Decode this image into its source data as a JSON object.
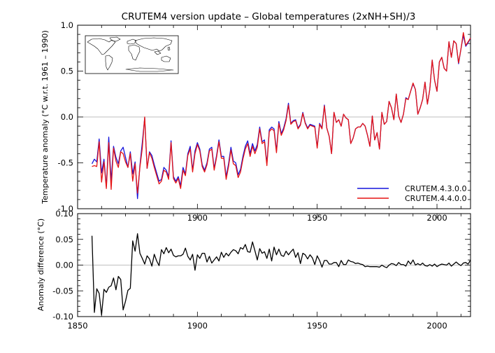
{
  "chart_data": [
    {
      "type": "line",
      "title": "CRUTEM4 version update – Global temperatures (2xNH+SH)/3",
      "xlabel": "",
      "ylabel": "Temperature anomaly (°C w.r.t. 1961 – 1990)",
      "xlim": [
        1850,
        2014
      ],
      "ylim": [
        -1.0,
        1.0
      ],
      "xticks": [
        1900,
        1950,
        2000
      ],
      "yticks": [
        {
          "value": 1.0,
          "label": "1.0"
        },
        {
          "value": 0.5,
          "label": "0.5"
        },
        {
          "value": 0.0,
          "label": "0.0"
        },
        {
          "value": -0.5,
          "label": "-0.5"
        },
        {
          "value": -1.0,
          "label": "-1.0"
        }
      ],
      "zero_line": true,
      "legend": "bottom-right",
      "inset": "world-map",
      "x": [
        1856,
        1857,
        1858,
        1859,
        1860,
        1861,
        1862,
        1863,
        1864,
        1865,
        1866,
        1867,
        1868,
        1869,
        1870,
        1871,
        1872,
        1873,
        1874,
        1875,
        1876,
        1877,
        1878,
        1879,
        1880,
        1881,
        1882,
        1883,
        1884,
        1885,
        1886,
        1887,
        1888,
        1889,
        1890,
        1891,
        1892,
        1893,
        1894,
        1895,
        1896,
        1897,
        1898,
        1899,
        1900,
        1901,
        1902,
        1903,
        1904,
        1905,
        1906,
        1907,
        1908,
        1909,
        1910,
        1911,
        1912,
        1913,
        1914,
        1915,
        1916,
        1917,
        1918,
        1919,
        1920,
        1921,
        1922,
        1923,
        1924,
        1925,
        1926,
        1927,
        1928,
        1929,
        1930,
        1931,
        1932,
        1933,
        1934,
        1935,
        1936,
        1937,
        1938,
        1939,
        1940,
        1941,
        1942,
        1943,
        1944,
        1945,
        1946,
        1947,
        1948,
        1949,
        1950,
        1951,
        1952,
        1953,
        1954,
        1955,
        1956,
        1957,
        1958,
        1959,
        1960,
        1961,
        1962,
        1963,
        1964,
        1965,
        1966,
        1967,
        1968,
        1969,
        1970,
        1971,
        1972,
        1973,
        1974,
        1975,
        1976,
        1977,
        1978,
        1979,
        1980,
        1981,
        1982,
        1983,
        1984,
        1985,
        1986,
        1987,
        1988,
        1989,
        1990,
        1991,
        1992,
        1993,
        1994,
        1995,
        1996,
        1997,
        1998,
        1999,
        2000,
        2001,
        2002,
        2003,
        2004,
        2005,
        2006,
        2007,
        2008,
        2009,
        2010,
        2011,
        2012,
        2013,
        2014
      ],
      "series": [
        {
          "name": "CRUTEM.4.3.0.0",
          "color": "#1414dc",
          "values": [
            -0.51,
            -0.46,
            -0.49,
            -0.24,
            -0.61,
            -0.46,
            -0.76,
            -0.22,
            -0.7,
            -0.32,
            -0.44,
            -0.51,
            -0.37,
            -0.33,
            -0.44,
            -0.55,
            -0.38,
            -0.62,
            -0.49,
            -0.89,
            -0.53,
            -0.28,
            -0.01,
            -0.56,
            -0.38,
            -0.42,
            -0.52,
            -0.61,
            -0.7,
            -0.68,
            -0.55,
            -0.58,
            -0.65,
            -0.26,
            -0.65,
            -0.7,
            -0.65,
            -0.75,
            -0.55,
            -0.62,
            -0.4,
            -0.32,
            -0.58,
            -0.37,
            -0.28,
            -0.35,
            -0.52,
            -0.58,
            -0.5,
            -0.35,
            -0.33,
            -0.56,
            -0.42,
            -0.25,
            -0.43,
            -0.43,
            -0.65,
            -0.51,
            -0.33,
            -0.48,
            -0.5,
            -0.63,
            -0.57,
            -0.43,
            -0.32,
            -0.26,
            -0.4,
            -0.29,
            -0.37,
            -0.3,
            -0.11,
            -0.27,
            -0.25,
            -0.51,
            -0.14,
            -0.11,
            -0.13,
            -0.37,
            -0.05,
            -0.18,
            -0.12,
            -0.02,
            0.15,
            -0.07,
            -0.04,
            -0.03,
            -0.12,
            -0.08,
            0.05,
            -0.06,
            -0.12,
            -0.08,
            -0.09,
            -0.1,
            -0.33,
            -0.07,
            -0.12,
            0.13,
            -0.12,
            -0.21,
            -0.4,
            0.05,
            -0.06,
            -0.03,
            -0.1,
            0.03,
            -0.01,
            -0.03,
            -0.29,
            -0.23,
            -0.13,
            -0.11,
            -0.11,
            -0.07,
            -0.1,
            -0.2,
            -0.32,
            0.01,
            -0.25,
            -0.17,
            -0.35,
            0.05,
            -0.08,
            -0.05,
            0.17,
            0.1,
            -0.03,
            0.25,
            0.01,
            -0.06,
            0.03,
            0.21,
            0.19,
            0.28,
            0.36,
            0.3,
            0.03,
            0.1,
            0.19,
            0.38,
            0.14,
            0.3,
            0.62,
            0.4,
            0.28,
            0.6,
            0.65,
            0.53,
            0.5,
            0.82,
            0.65,
            0.83,
            0.8,
            0.58,
            0.74,
            0.89,
            0.77,
            0.81,
            0.86
          ]
        },
        {
          "name": "CRUTEM.4.4.0.0",
          "color": "#e61414",
          "values": [
            -0.54,
            -0.53,
            -0.54,
            -0.27,
            -0.71,
            -0.49,
            -0.78,
            -0.28,
            -0.79,
            -0.34,
            -0.48,
            -0.55,
            -0.38,
            -0.4,
            -0.49,
            -0.55,
            -0.4,
            -0.7,
            -0.51,
            -0.83,
            -0.55,
            -0.34,
            0.0,
            -0.56,
            -0.39,
            -0.45,
            -0.55,
            -0.64,
            -0.73,
            -0.7,
            -0.58,
            -0.6,
            -0.68,
            -0.28,
            -0.67,
            -0.72,
            -0.67,
            -0.78,
            -0.58,
            -0.64,
            -0.42,
            -0.35,
            -0.6,
            -0.4,
            -0.3,
            -0.37,
            -0.54,
            -0.6,
            -0.52,
            -0.37,
            -0.35,
            -0.58,
            -0.44,
            -0.27,
            -0.45,
            -0.45,
            -0.68,
            -0.54,
            -0.36,
            -0.51,
            -0.53,
            -0.66,
            -0.6,
            -0.46,
            -0.35,
            -0.29,
            -0.43,
            -0.32,
            -0.4,
            -0.33,
            -0.13,
            -0.29,
            -0.27,
            -0.53,
            -0.16,
            -0.13,
            -0.15,
            -0.39,
            -0.07,
            -0.2,
            -0.14,
            -0.04,
            0.13,
            -0.08,
            -0.05,
            -0.04,
            -0.13,
            -0.09,
            0.04,
            -0.07,
            -0.13,
            -0.09,
            -0.1,
            -0.11,
            -0.34,
            -0.08,
            -0.13,
            0.12,
            -0.12,
            -0.21,
            -0.4,
            0.05,
            -0.06,
            -0.03,
            -0.1,
            0.03,
            -0.01,
            -0.03,
            -0.29,
            -0.23,
            -0.13,
            -0.11,
            -0.11,
            -0.07,
            -0.1,
            -0.2,
            -0.32,
            0.01,
            -0.25,
            -0.17,
            -0.35,
            0.05,
            -0.08,
            -0.05,
            0.17,
            0.1,
            -0.03,
            0.25,
            0.01,
            -0.06,
            0.03,
            0.2,
            0.19,
            0.28,
            0.37,
            0.3,
            0.03,
            0.1,
            0.19,
            0.38,
            0.14,
            0.3,
            0.62,
            0.4,
            0.28,
            0.6,
            0.65,
            0.53,
            0.5,
            0.82,
            0.65,
            0.83,
            0.8,
            0.59,
            0.74,
            0.92,
            0.78,
            0.82,
            0.86
          ]
        }
      ]
    },
    {
      "type": "line",
      "title": "",
      "xlabel": "",
      "ylabel": "Anomaly difference (°C)",
      "xlim": [
        1850,
        2014
      ],
      "ylim": [
        -0.1,
        0.1
      ],
      "xticks": [
        1850,
        1900,
        1950,
        2000
      ],
      "yticks": [
        {
          "value": 0.1,
          "label": "0.10"
        },
        {
          "value": 0.05,
          "label": "0.05"
        },
        {
          "value": 0.0,
          "label": "0.00"
        },
        {
          "value": -0.05,
          "label": "-0.05"
        },
        {
          "value": -0.1,
          "label": "-0.10"
        }
      ],
      "zero_line": true,
      "series": [
        {
          "name": "",
          "color": "#000000",
          "values": [
            0.057,
            -0.092,
            -0.046,
            -0.055,
            -0.097,
            -0.047,
            -0.053,
            -0.043,
            -0.04,
            -0.025,
            -0.048,
            -0.022,
            -0.028,
            -0.087,
            -0.07,
            -0.049,
            -0.045,
            0.047,
            0.027,
            0.061,
            0.023,
            0.013,
            0.002,
            0.018,
            0.012,
            -0.002,
            0.021,
            0.008,
            -0.001,
            0.03,
            0.022,
            0.034,
            0.024,
            0.031,
            0.019,
            0.016,
            0.018,
            0.018,
            0.021,
            0.033,
            0.017,
            0.01,
            0.021,
            -0.01,
            0.02,
            0.013,
            0.023,
            0.023,
            0.006,
            0.017,
            0.004,
            0.01,
            0.016,
            0.008,
            0.025,
            0.015,
            0.023,
            0.018,
            0.025,
            0.03,
            0.028,
            0.022,
            0.034,
            0.031,
            0.04,
            0.026,
            0.025,
            0.045,
            0.028,
            0.01,
            0.032,
            0.023,
            0.026,
            0.013,
            0.031,
            0.008,
            0.035,
            0.02,
            0.031,
            0.019,
            0.017,
            0.027,
            0.02,
            0.026,
            0.031,
            0.015,
            0.024,
            0.003,
            0.023,
            0.02,
            0.012,
            0.02,
            0.014,
            0.001,
            0.018,
            0.009,
            -0.004,
            0.009,
            0.009,
            0.002,
            0.002,
            0.005,
            0.005,
            -0.003,
            0.009,
            0.001,
            0.001,
            0.01,
            0.007,
            0.006,
            0.003,
            0.004,
            0.002,
            0.001,
            -0.003,
            -0.002,
            -0.003,
            -0.003,
            -0.003,
            -0.003,
            -0.004,
            0.0,
            -0.003,
            -0.005,
            0.0,
            0.003,
            0.002,
            -0.001,
            0.005,
            0.001,
            0.001,
            -0.002,
            0.008,
            0.002,
            0.01,
            0.0,
            0.003,
            0.0,
            0.004,
            -0.001,
            -0.002,
            0.001,
            -0.002,
            0.002,
            -0.003,
            0.0,
            0.002,
            0.001,
            0.0,
            0.004,
            -0.002,
            0.002,
            0.006,
            0.002,
            -0.001,
            0.004,
            0.005,
            0.002,
            0.01
          ]
        }
      ]
    }
  ]
}
